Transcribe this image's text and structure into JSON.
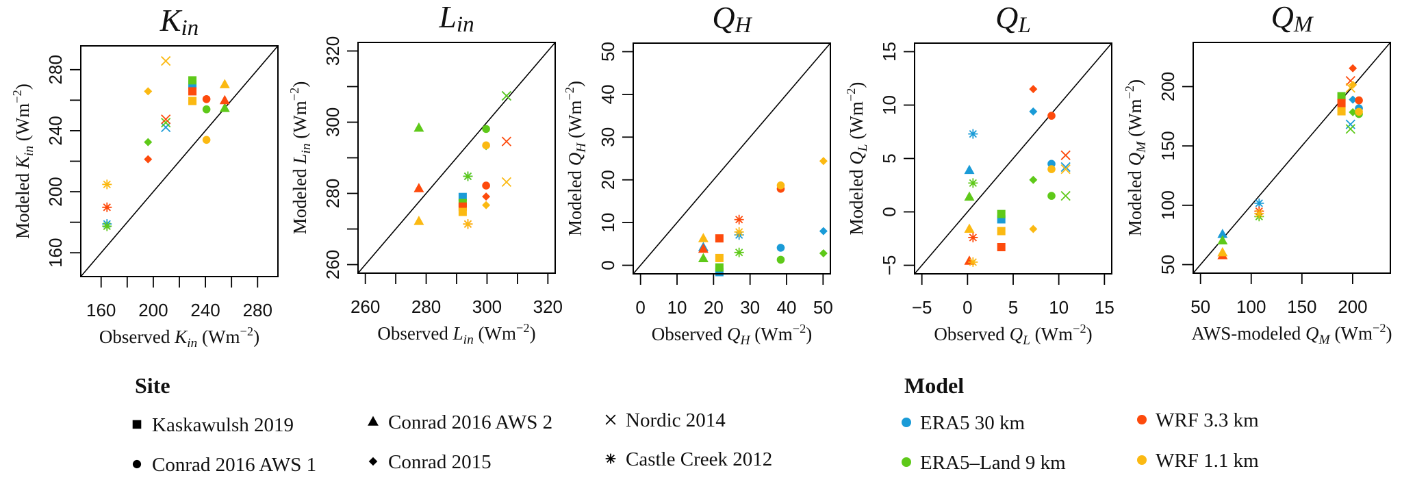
{
  "colors": {
    "ERA5": "#1a9bd7",
    "ERA5L": "#5ec919",
    "WRF33": "#fd4a0c",
    "WRF11": "#fbb912"
  },
  "legend": {
    "site_title": "Site",
    "sites": [
      {
        "key": "K",
        "label": "Kaskawulsh 2019",
        "symbol": "square"
      },
      {
        "key": "C1",
        "label": "Conrad 2016 AWS 1",
        "symbol": "circle"
      },
      {
        "key": "C2",
        "label": "Conrad 2016 AWS 2",
        "symbol": "triangle"
      },
      {
        "key": "C15",
        "label": "Conrad 2015",
        "symbol": "diamond"
      },
      {
        "key": "N",
        "label": "Nordic 2014",
        "symbol": "cross"
      },
      {
        "key": "CC",
        "label": "Castle Creek 2012",
        "symbol": "asterisk"
      }
    ],
    "model_title": "Model",
    "models": [
      {
        "key": "ERA5",
        "label": "ERA5 30 km"
      },
      {
        "key": "ERA5L",
        "label": "ERA5–Land 9 km"
      },
      {
        "key": "WRF33",
        "label": "WRF 3.3 km"
      },
      {
        "key": "WRF11",
        "label": "WRF 1.1 km"
      }
    ]
  },
  "chart_data": [
    {
      "type": "scatter",
      "title": [
        [
          "K",
          ""
        ],
        [
          "in",
          "sub"
        ]
      ],
      "xlabel": [
        [
          "Observed ",
          ""
        ],
        [
          "K",
          "i"
        ],
        [
          "in",
          "sub"
        ],
        [
          " (Wm",
          ""
        ],
        [
          "−2",
          "sup"
        ],
        [
          ")",
          ""
        ]
      ],
      "ylabel": [
        [
          "Modeled ",
          ""
        ],
        [
          "K",
          "i"
        ],
        [
          "in",
          "sub"
        ],
        [
          " (Wm",
          ""
        ],
        [
          "−2",
          "sup"
        ],
        [
          ")",
          ""
        ]
      ],
      "xlim": [
        144.4,
        295.6
      ],
      "ylim": [
        144.4,
        295.6
      ],
      "ticks": [
        160,
        180,
        200,
        220,
        240,
        260,
        280
      ],
      "tick_labels": [
        "160",
        "200",
        "240",
        "280"
      ],
      "one_to_one_line": true,
      "points": [
        {
          "site": "K",
          "model": "ERA5",
          "x": 230,
          "y": 270
        },
        {
          "site": "K",
          "model": "ERA5L",
          "x": 230,
          "y": 273
        },
        {
          "site": "K",
          "model": "WRF33",
          "x": 230,
          "y": 265.8
        },
        {
          "site": "K",
          "model": "WRF11",
          "x": 230,
          "y": 259.5
        },
        {
          "site": "C1",
          "model": "ERA5L",
          "x": 240.8,
          "y": 254
        },
        {
          "site": "C1",
          "model": "WRF33",
          "x": 240.8,
          "y": 260.7
        },
        {
          "site": "C1",
          "model": "WRF11",
          "x": 240.8,
          "y": 234
        },
        {
          "site": "C2",
          "model": "ERA5L",
          "x": 254.8,
          "y": 254.7
        },
        {
          "site": "C2",
          "model": "WRF33",
          "x": 254.8,
          "y": 259.8
        },
        {
          "site": "C2",
          "model": "WRF11",
          "x": 254.8,
          "y": 270.3
        },
        {
          "site": "C15",
          "model": "ERA5L",
          "x": 196,
          "y": 232.5
        },
        {
          "site": "C15",
          "model": "WRF33",
          "x": 196,
          "y": 221.3
        },
        {
          "site": "C15",
          "model": "WRF11",
          "x": 196,
          "y": 265.8
        },
        {
          "site": "N",
          "model": "ERA5",
          "x": 209.6,
          "y": 242.2
        },
        {
          "site": "N",
          "model": "ERA5L",
          "x": 209.6,
          "y": 245.3
        },
        {
          "site": "N",
          "model": "WRF33",
          "x": 209.6,
          "y": 247.5
        },
        {
          "site": "N",
          "model": "WRF11",
          "x": 209.6,
          "y": 285.7
        },
        {
          "site": "CC",
          "model": "ERA5",
          "x": 164.5,
          "y": 178.9
        },
        {
          "site": "CC",
          "model": "ERA5L",
          "x": 164.5,
          "y": 177.4
        },
        {
          "site": "CC",
          "model": "WRF33",
          "x": 164.5,
          "y": 189.8
        },
        {
          "site": "CC",
          "model": "WRF11",
          "x": 164.5,
          "y": 204.8
        }
      ]
    },
    {
      "type": "scatter",
      "title": [
        [
          "L",
          ""
        ],
        [
          "in",
          "sub"
        ]
      ],
      "xlabel": [
        [
          "Observed ",
          ""
        ],
        [
          "L",
          "i"
        ],
        [
          "in",
          "sub"
        ],
        [
          " (Wm",
          ""
        ],
        [
          "−2",
          "sup"
        ],
        [
          ")",
          ""
        ]
      ],
      "ylabel": [
        [
          "Modeled ",
          ""
        ],
        [
          "L",
          "i"
        ],
        [
          "in",
          "sub"
        ],
        [
          " (Wm",
          ""
        ],
        [
          "−2",
          "sup"
        ],
        [
          ")",
          ""
        ]
      ],
      "xlim": [
        257.6,
        322.4
      ],
      "ylim": [
        257.6,
        322.4
      ],
      "ticks": [
        260,
        270,
        280,
        290,
        300,
        310,
        320
      ],
      "tick_labels": [
        "260",
        "280",
        "300",
        "320"
      ],
      "one_to_one_line": true,
      "points": [
        {
          "site": "C2",
          "model": "ERA5L",
          "x": 277.6,
          "y": 298.4
        },
        {
          "site": "C2",
          "model": "WRF33",
          "x": 277.6,
          "y": 281.4
        },
        {
          "site": "C2",
          "model": "WRF11",
          "x": 277.6,
          "y": 272.2
        },
        {
          "site": "K",
          "model": "ERA5",
          "x": 292,
          "y": 279.0
        },
        {
          "site": "K",
          "model": "ERA5L",
          "x": 292,
          "y": 277.3
        },
        {
          "site": "K",
          "model": "WRF33",
          "x": 292,
          "y": 276.3
        },
        {
          "site": "K",
          "model": "WRF11",
          "x": 292,
          "y": 274.8
        },
        {
          "site": "CC",
          "model": "ERA5",
          "x": 293.7,
          "y": 284.8
        },
        {
          "site": "CC",
          "model": "ERA5L",
          "x": 293.7,
          "y": 284.8
        },
        {
          "site": "CC",
          "model": "WRF33",
          "x": 293.7,
          "y": 271.4
        },
        {
          "site": "CC",
          "model": "WRF11",
          "x": 293.7,
          "y": 271.4
        },
        {
          "site": "C1",
          "model": "ERA5L",
          "x": 299.7,
          "y": 298.1
        },
        {
          "site": "C1",
          "model": "WRF33",
          "x": 299.7,
          "y": 282.2
        },
        {
          "site": "C1",
          "model": "WRF11",
          "x": 299.7,
          "y": 293.5
        },
        {
          "site": "C15",
          "model": "ERA5L",
          "x": 299.7,
          "y": 293.3
        },
        {
          "site": "C15",
          "model": "WRF33",
          "x": 299.7,
          "y": 279.1
        },
        {
          "site": "C15",
          "model": "WRF11",
          "x": 299.7,
          "y": 276.7
        },
        {
          "site": "N",
          "model": "ERA5",
          "x": 306.4,
          "y": 307.4
        },
        {
          "site": "N",
          "model": "ERA5L",
          "x": 306.4,
          "y": 307.4
        },
        {
          "site": "N",
          "model": "WRF33",
          "x": 306.4,
          "y": 294.6
        },
        {
          "site": "N",
          "model": "WRF11",
          "x": 306.4,
          "y": 283.2
        }
      ]
    },
    {
      "type": "scatter",
      "title": [
        [
          "Q",
          ""
        ],
        [
          "H",
          "sub"
        ]
      ],
      "xlabel": [
        [
          "Observed ",
          ""
        ],
        [
          "Q",
          "i"
        ],
        [
          "H",
          "sub"
        ],
        [
          " (Wm",
          ""
        ],
        [
          "−2",
          "sup"
        ],
        [
          ")",
          ""
        ]
      ],
      "ylabel": [
        [
          "Modeled ",
          ""
        ],
        [
          "Q",
          "i"
        ],
        [
          "H",
          "sub"
        ],
        [
          " (Wm",
          ""
        ],
        [
          "−2",
          "sup"
        ],
        [
          ")",
          ""
        ]
      ],
      "xlim": [
        -2,
        52
      ],
      "ylim": [
        -2,
        52
      ],
      "ticks": [
        0,
        10,
        20,
        30,
        40,
        50
      ],
      "tick_labels": [
        "0",
        "10",
        "20",
        "30",
        "40",
        "50"
      ],
      "one_to_one_line": true,
      "points": [
        {
          "site": "C2",
          "model": "ERA5",
          "x": 17.2,
          "y": 4.2
        },
        {
          "site": "C2",
          "model": "ERA5L",
          "x": 17.2,
          "y": 1.6
        },
        {
          "site": "C2",
          "model": "WRF33",
          "x": 17.2,
          "y": 3.8
        },
        {
          "site": "C2",
          "model": "WRF11",
          "x": 17.2,
          "y": 6.3
        },
        {
          "site": "K",
          "model": "ERA5",
          "x": 21.6,
          "y": -1.6
        },
        {
          "site": "K",
          "model": "ERA5L",
          "x": 21.6,
          "y": -0.5
        },
        {
          "site": "K",
          "model": "WRF33",
          "x": 21.6,
          "y": 6.3
        },
        {
          "site": "K",
          "model": "WRF11",
          "x": 21.6,
          "y": 1.7
        },
        {
          "site": "CC",
          "model": "ERA5",
          "x": 27,
          "y": 7.1
        },
        {
          "site": "CC",
          "model": "ERA5L",
          "x": 27,
          "y": 3.0
        },
        {
          "site": "CC",
          "model": "WRF33",
          "x": 27,
          "y": 10.7
        },
        {
          "site": "CC",
          "model": "WRF11",
          "x": 27,
          "y": 7.8
        },
        {
          "site": "C1",
          "model": "ERA5",
          "x": 38.4,
          "y": 4.1
        },
        {
          "site": "C1",
          "model": "ERA5L",
          "x": 38.4,
          "y": 1.3
        },
        {
          "site": "C1",
          "model": "WRF33",
          "x": 38.4,
          "y": 17.9
        },
        {
          "site": "C1",
          "model": "WRF11",
          "x": 38.4,
          "y": 18.7
        },
        {
          "site": "C15",
          "model": "ERA5",
          "x": 50.1,
          "y": 8.0
        },
        {
          "site": "C15",
          "model": "ERA5L",
          "x": 50.1,
          "y": 2.8
        },
        {
          "site": "C15",
          "model": "WRF11",
          "x": 50.1,
          "y": 24.4
        }
      ]
    },
    {
      "type": "scatter",
      "title": [
        [
          "Q",
          ""
        ],
        [
          "L",
          "sub"
        ]
      ],
      "xlabel": [
        [
          "Observed ",
          ""
        ],
        [
          "Q",
          "i"
        ],
        [
          "L",
          "sub"
        ],
        [
          " (Wm",
          ""
        ],
        [
          "−2",
          "sup"
        ],
        [
          ")",
          ""
        ]
      ],
      "ylabel": [
        [
          "Modeled ",
          ""
        ],
        [
          "Q",
          "i"
        ],
        [
          "L",
          "sub"
        ],
        [
          " (Wm",
          ""
        ],
        [
          "−2",
          "sup"
        ],
        [
          ")",
          ""
        ]
      ],
      "xlim": [
        -5.8,
        15.8
      ],
      "ylim": [
        -5.8,
        15.8
      ],
      "ticks": [
        -5,
        0,
        5,
        10,
        15
      ],
      "tick_labels": [
        "−5",
        "0",
        "5",
        "10",
        "15"
      ],
      "one_to_one_line": true,
      "points": [
        {
          "site": "C15",
          "model": "ERA5",
          "x": 7.2,
          "y": 9.4
        },
        {
          "site": "C15",
          "model": "ERA5L",
          "x": 7.2,
          "y": 3.0
        },
        {
          "site": "C15",
          "model": "WRF33",
          "x": 7.2,
          "y": 11.5
        },
        {
          "site": "C15",
          "model": "WRF11",
          "x": 7.2,
          "y": -1.6
        },
        {
          "site": "C1",
          "model": "ERA5",
          "x": 9.2,
          "y": 4.5
        },
        {
          "site": "C1",
          "model": "ERA5L",
          "x": 9.2,
          "y": 1.5
        },
        {
          "site": "C1",
          "model": "WRF33",
          "x": 9.2,
          "y": 9.0
        },
        {
          "site": "C1",
          "model": "WRF11",
          "x": 9.2,
          "y": 4.0
        },
        {
          "site": "N",
          "model": "ERA5",
          "x": 10.75,
          "y": 4.2
        },
        {
          "site": "N",
          "model": "ERA5L",
          "x": 10.75,
          "y": 1.5
        },
        {
          "site": "N",
          "model": "WRF33",
          "x": 10.75,
          "y": 5.3
        },
        {
          "site": "N",
          "model": "WRF11",
          "x": 10.75,
          "y": 4.0
        },
        {
          "site": "CC",
          "model": "ERA5",
          "x": 0.6,
          "y": 7.3
        },
        {
          "site": "CC",
          "model": "ERA5L",
          "x": 0.6,
          "y": 2.7
        },
        {
          "site": "CC",
          "model": "WRF33",
          "x": 0.6,
          "y": -2.4
        },
        {
          "site": "CC",
          "model": "WRF11",
          "x": 0.6,
          "y": -4.7
        },
        {
          "site": "C2",
          "model": "ERA5",
          "x": 0.2,
          "y": 3.9
        },
        {
          "site": "C2",
          "model": "ERA5L",
          "x": 0.2,
          "y": 1.4
        },
        {
          "site": "C2",
          "model": "WRF33",
          "x": 0.2,
          "y": -4.6
        },
        {
          "site": "C2",
          "model": "WRF11",
          "x": 0.2,
          "y": -1.6
        },
        {
          "site": "K",
          "model": "ERA5",
          "x": 3.7,
          "y": -0.7
        },
        {
          "site": "K",
          "model": "ERA5L",
          "x": 3.7,
          "y": -0.2
        },
        {
          "site": "K",
          "model": "WRF33",
          "x": 3.7,
          "y": -3.3
        },
        {
          "site": "K",
          "model": "WRF11",
          "x": 3.7,
          "y": -1.8
        }
      ]
    },
    {
      "type": "scatter",
      "title": [
        [
          "Q",
          ""
        ],
        [
          "M",
          "sub"
        ]
      ],
      "xlabel": [
        [
          "AWS-modeled ",
          ""
        ],
        [
          "Q",
          "i"
        ],
        [
          "M",
          "sub"
        ],
        [
          " (Wm",
          ""
        ],
        [
          "−2",
          "sup"
        ],
        [
          ")",
          ""
        ]
      ],
      "ylabel": [
        [
          "Modeled ",
          ""
        ],
        [
          "Q",
          "i"
        ],
        [
          "M",
          "sub"
        ],
        [
          " (Wm",
          ""
        ],
        [
          "−2",
          "sup"
        ],
        [
          ")",
          ""
        ]
      ],
      "xlim": [
        42.8,
        237.2
      ],
      "ylim": [
        42.8,
        237.2
      ],
      "ticks": [
        50,
        100,
        150,
        200
      ],
      "tick_labels": [
        "50",
        "100",
        "150",
        "200"
      ],
      "one_to_one_line": true,
      "points": [
        {
          "site": "C2",
          "model": "ERA5",
          "x": 71.7,
          "y": 75.6
        },
        {
          "site": "C2",
          "model": "ERA5L",
          "x": 71.7,
          "y": 70.2
        },
        {
          "site": "C2",
          "model": "WRF33",
          "x": 71.7,
          "y": 57.7
        },
        {
          "site": "C2",
          "model": "WRF11",
          "x": 71.7,
          "y": 60.2
        },
        {
          "site": "CC",
          "model": "ERA5",
          "x": 107.8,
          "y": 101.7
        },
        {
          "site": "CC",
          "model": "ERA5L",
          "x": 107.8,
          "y": 90.5
        },
        {
          "site": "CC",
          "model": "WRF33",
          "x": 107.8,
          "y": 95.0
        },
        {
          "site": "CC",
          "model": "WRF11",
          "x": 107.8,
          "y": 93.0
        },
        {
          "site": "K",
          "model": "ERA5L",
          "x": 189,
          "y": 191.9
        },
        {
          "site": "K",
          "model": "WRF33",
          "x": 189,
          "y": 186.1
        },
        {
          "site": "K",
          "model": "WRF11",
          "x": 189,
          "y": 179.2
        },
        {
          "site": "C15",
          "model": "ERA5",
          "x": 200.2,
          "y": 189
        },
        {
          "site": "C15",
          "model": "ERA5L",
          "x": 200.2,
          "y": 178.4
        },
        {
          "site": "C15",
          "model": "WRF33",
          "x": 200.2,
          "y": 215.4
        },
        {
          "site": "C15",
          "model": "WRF11",
          "x": 200.2,
          "y": 201.5
        },
        {
          "site": "N",
          "model": "ERA5",
          "x": 197.9,
          "y": 168.2
        },
        {
          "site": "N",
          "model": "ERA5L",
          "x": 197.9,
          "y": 164.3
        },
        {
          "site": "N",
          "model": "WRF33",
          "x": 197.9,
          "y": 204.8
        },
        {
          "site": "N",
          "model": "WRF11",
          "x": 197.9,
          "y": 199
        },
        {
          "site": "C1",
          "model": "ERA5",
          "x": 206.2,
          "y": 181.7
        },
        {
          "site": "C1",
          "model": "ERA5L",
          "x": 206.2,
          "y": 176.9
        },
        {
          "site": "C1",
          "model": "WRF33",
          "x": 206.2,
          "y": 188.4
        },
        {
          "site": "C1",
          "model": "WRF11",
          "x": 206.2,
          "y": 178.8
        }
      ]
    }
  ]
}
